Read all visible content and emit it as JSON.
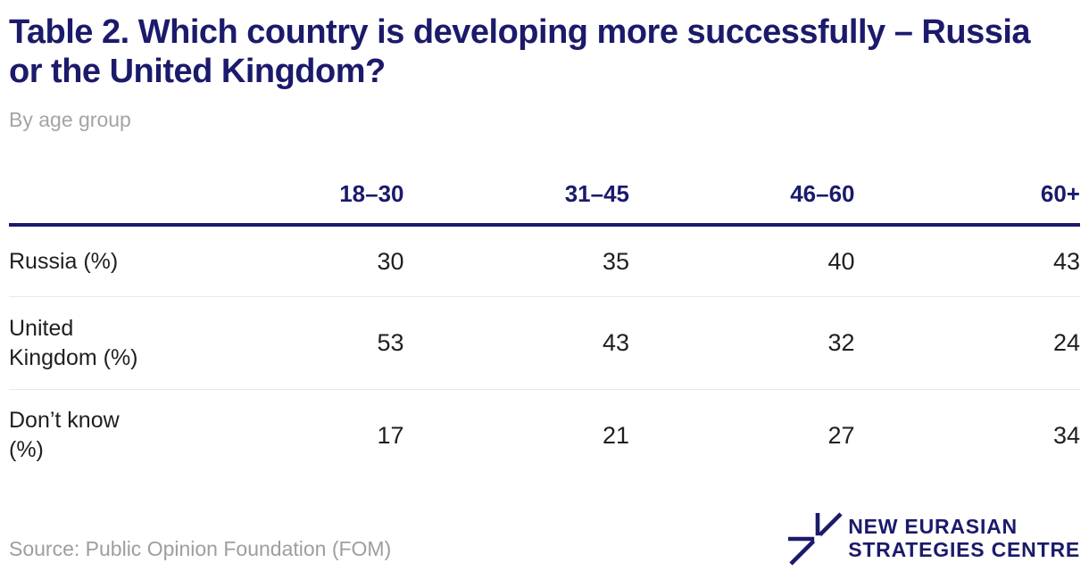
{
  "title": {
    "line1": "Table 2. Which country is developing more successfully – Russia",
    "line2": "or the United Kingdom?"
  },
  "subtitle": "By age group",
  "chart_data": {
    "type": "table",
    "title": "Table 2. Which country is developing more successfully – Russia or the United Kingdom?",
    "subtitle": "By age group",
    "columns": [
      "18–30",
      "31–45",
      "46–60",
      "60+"
    ],
    "rows": [
      {
        "label": "Russia (%)",
        "values": [
          30,
          35,
          40,
          43
        ]
      },
      {
        "label": "United Kingdom (%)",
        "values": [
          53,
          43,
          32,
          24
        ]
      },
      {
        "label": "Don’t know (%)",
        "values": [
          17,
          21,
          27,
          34
        ]
      }
    ]
  },
  "footer": {
    "source": "Source: Public Opinion Foundation (FOM)",
    "logo": {
      "line1": "NEW EURASIAN",
      "line2": "STRATEGIES CENTRE",
      "icon": "nesc-star-icon"
    }
  },
  "colors": {
    "navy": "#1b1a6b",
    "text": "#1f1f1f",
    "muted_gray": "#a4a4a4",
    "source_gray": "#9e9e9e",
    "separator": "#e8e8e8",
    "background": "#ffffff"
  }
}
